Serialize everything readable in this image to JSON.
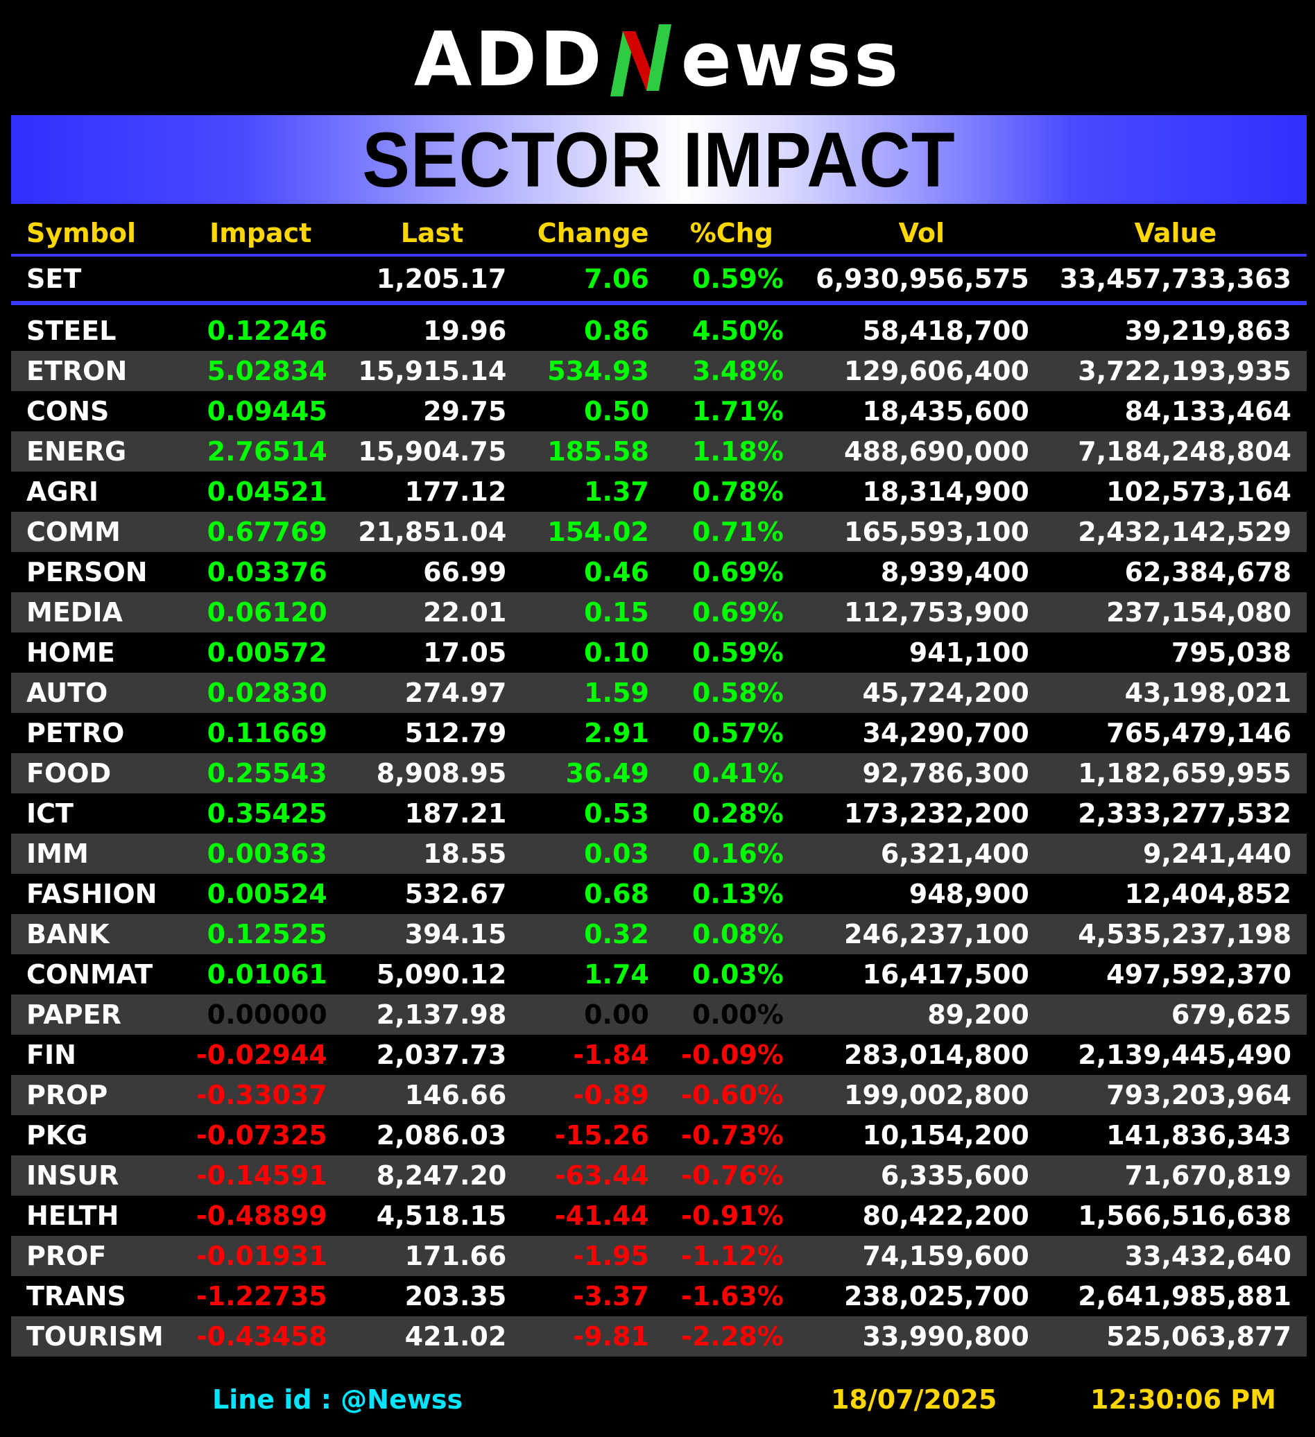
{
  "logo": {
    "left": "ADD",
    "right": "ewss",
    "n_letter": "N"
  },
  "banner": {
    "title": "SECTOR IMPACT"
  },
  "columns": [
    "Symbol",
    "Impact",
    "Last",
    "Change",
    "%Chg",
    "Vol",
    "Value"
  ],
  "set": {
    "symbol": "SET",
    "impact": "",
    "last": "1,205.17",
    "change": "7.06",
    "pct": "0.59%",
    "vol": "6,930,956,575",
    "value": "33,457,733,363"
  },
  "rows": [
    {
      "symbol": "STEEL",
      "impact": "0.12246",
      "last": "19.96",
      "change": "0.86",
      "pct": "4.50%",
      "vol": "58,418,700",
      "value": "39,219,863",
      "dir": "pos"
    },
    {
      "symbol": "ETRON",
      "impact": "5.02834",
      "last": "15,915.14",
      "change": "534.93",
      "pct": "3.48%",
      "vol": "129,606,400",
      "value": "3,722,193,935",
      "dir": "pos"
    },
    {
      "symbol": "CONS",
      "impact": "0.09445",
      "last": "29.75",
      "change": "0.50",
      "pct": "1.71%",
      "vol": "18,435,600",
      "value": "84,133,464",
      "dir": "pos"
    },
    {
      "symbol": "ENERG",
      "impact": "2.76514",
      "last": "15,904.75",
      "change": "185.58",
      "pct": "1.18%",
      "vol": "488,690,000",
      "value": "7,184,248,804",
      "dir": "pos"
    },
    {
      "symbol": "AGRI",
      "impact": "0.04521",
      "last": "177.12",
      "change": "1.37",
      "pct": "0.78%",
      "vol": "18,314,900",
      "value": "102,573,164",
      "dir": "pos"
    },
    {
      "symbol": "COMM",
      "impact": "0.67769",
      "last": "21,851.04",
      "change": "154.02",
      "pct": "0.71%",
      "vol": "165,593,100",
      "value": "2,432,142,529",
      "dir": "pos"
    },
    {
      "symbol": "PERSON",
      "impact": "0.03376",
      "last": "66.99",
      "change": "0.46",
      "pct": "0.69%",
      "vol": "8,939,400",
      "value": "62,384,678",
      "dir": "pos"
    },
    {
      "symbol": "MEDIA",
      "impact": "0.06120",
      "last": "22.01",
      "change": "0.15",
      "pct": "0.69%",
      "vol": "112,753,900",
      "value": "237,154,080",
      "dir": "pos"
    },
    {
      "symbol": "HOME",
      "impact": "0.00572",
      "last": "17.05",
      "change": "0.10",
      "pct": "0.59%",
      "vol": "941,100",
      "value": "795,038",
      "dir": "pos"
    },
    {
      "symbol": "AUTO",
      "impact": "0.02830",
      "last": "274.97",
      "change": "1.59",
      "pct": "0.58%",
      "vol": "45,724,200",
      "value": "43,198,021",
      "dir": "pos"
    },
    {
      "symbol": "PETRO",
      "impact": "0.11669",
      "last": "512.79",
      "change": "2.91",
      "pct": "0.57%",
      "vol": "34,290,700",
      "value": "765,479,146",
      "dir": "pos"
    },
    {
      "symbol": "FOOD",
      "impact": "0.25543",
      "last": "8,908.95",
      "change": "36.49",
      "pct": "0.41%",
      "vol": "92,786,300",
      "value": "1,182,659,955",
      "dir": "pos"
    },
    {
      "symbol": "ICT",
      "impact": "0.35425",
      "last": "187.21",
      "change": "0.53",
      "pct": "0.28%",
      "vol": "173,232,200",
      "value": "2,333,277,532",
      "dir": "pos"
    },
    {
      "symbol": "IMM",
      "impact": "0.00363",
      "last": "18.55",
      "change": "0.03",
      "pct": "0.16%",
      "vol": "6,321,400",
      "value": "9,241,440",
      "dir": "pos"
    },
    {
      "symbol": "FASHION",
      "impact": "0.00524",
      "last": "532.67",
      "change": "0.68",
      "pct": "0.13%",
      "vol": "948,900",
      "value": "12,404,852",
      "dir": "pos"
    },
    {
      "symbol": "BANK",
      "impact": "0.12525",
      "last": "394.15",
      "change": "0.32",
      "pct": "0.08%",
      "vol": "246,237,100",
      "value": "4,535,237,198",
      "dir": "pos"
    },
    {
      "symbol": "CONMAT",
      "impact": "0.01061",
      "last": "5,090.12",
      "change": "1.74",
      "pct": "0.03%",
      "vol": "16,417,500",
      "value": "497,592,370",
      "dir": "pos"
    },
    {
      "symbol": "PAPER",
      "impact": "0.00000",
      "last": "2,137.98",
      "change": "0.00",
      "pct": "0.00%",
      "vol": "89,200",
      "value": "679,625",
      "dir": "zero"
    },
    {
      "symbol": "FIN",
      "impact": "-0.02944",
      "last": "2,037.73",
      "change": "-1.84",
      "pct": "-0.09%",
      "vol": "283,014,800",
      "value": "2,139,445,490",
      "dir": "neg"
    },
    {
      "symbol": "PROP",
      "impact": "-0.33037",
      "last": "146.66",
      "change": "-0.89",
      "pct": "-0.60%",
      "vol": "199,002,800",
      "value": "793,203,964",
      "dir": "neg"
    },
    {
      "symbol": "PKG",
      "impact": "-0.07325",
      "last": "2,086.03",
      "change": "-15.26",
      "pct": "-0.73%",
      "vol": "10,154,200",
      "value": "141,836,343",
      "dir": "neg"
    },
    {
      "symbol": "INSUR",
      "impact": "-0.14591",
      "last": "8,247.20",
      "change": "-63.44",
      "pct": "-0.76%",
      "vol": "6,335,600",
      "value": "71,670,819",
      "dir": "neg"
    },
    {
      "symbol": "HELTH",
      "impact": "-0.48899",
      "last": "4,518.15",
      "change": "-41.44",
      "pct": "-0.91%",
      "vol": "80,422,200",
      "value": "1,566,516,638",
      "dir": "neg"
    },
    {
      "symbol": "PROF",
      "impact": "-0.01931",
      "last": "171.66",
      "change": "-1.95",
      "pct": "-1.12%",
      "vol": "74,159,600",
      "value": "33,432,640",
      "dir": "neg"
    },
    {
      "symbol": "TRANS",
      "impact": "-1.22735",
      "last": "203.35",
      "change": "-3.37",
      "pct": "-1.63%",
      "vol": "238,025,700",
      "value": "2,641,985,881",
      "dir": "neg"
    },
    {
      "symbol": "TOURISM",
      "impact": "-0.43458",
      "last": "421.02",
      "change": "-9.81",
      "pct": "-2.28%",
      "vol": "33,990,800",
      "value": "525,063,877",
      "dir": "neg"
    }
  ],
  "footer": {
    "line_id": "Line id  : @Newss",
    "date": "18/07/2025",
    "time": "12:30:06 PM"
  },
  "colors": {
    "positive": "#00ff00",
    "negative": "#ff0000",
    "header": "#ffd700",
    "accent": "#3a3aff",
    "footer_line": "#00e5ff"
  }
}
